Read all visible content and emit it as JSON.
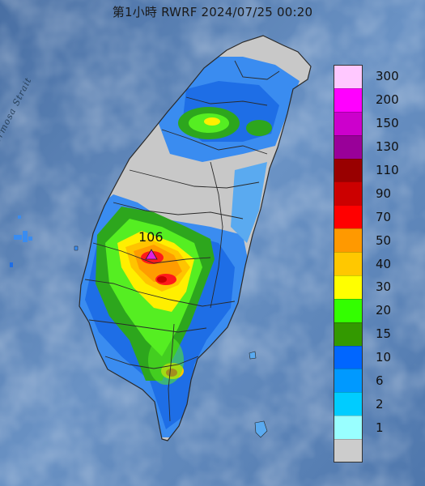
{
  "title": "第1小時  RWRF 2024/07/25 00:20",
  "strait_label": "Formosa Strait",
  "peak": {
    "value": "106",
    "marker_color": "#e020e0",
    "marker_icon": "triangle-marker-icon"
  },
  "colors": {
    "sea": "#5d87bd",
    "land_dry": "#c8c8c8",
    "border": "#2a2a2a"
  },
  "legend": {
    "bins": [
      {
        "label": "300",
        "color": "#ffc8ff"
      },
      {
        "label": "200",
        "color": "#ff00ff"
      },
      {
        "label": "150",
        "color": "#cc00cc"
      },
      {
        "label": "130",
        "color": "#990099"
      },
      {
        "label": "110",
        "color": "#990000"
      },
      {
        "label": "90",
        "color": "#cc0000"
      },
      {
        "label": "70",
        "color": "#ff0000"
      },
      {
        "label": "50",
        "color": "#ff9900"
      },
      {
        "label": "40",
        "color": "#ffc800"
      },
      {
        "label": "30",
        "color": "#ffff00"
      },
      {
        "label": "20",
        "color": "#33ff00"
      },
      {
        "label": "15",
        "color": "#339900"
      },
      {
        "label": "10",
        "color": "#0066ff"
      },
      {
        "label": "6",
        "color": "#0099ff"
      },
      {
        "label": "2",
        "color": "#00ccff"
      },
      {
        "label": "1",
        "color": "#99ffff"
      },
      {
        "label": "",
        "color": "#cccccc"
      }
    ]
  }
}
